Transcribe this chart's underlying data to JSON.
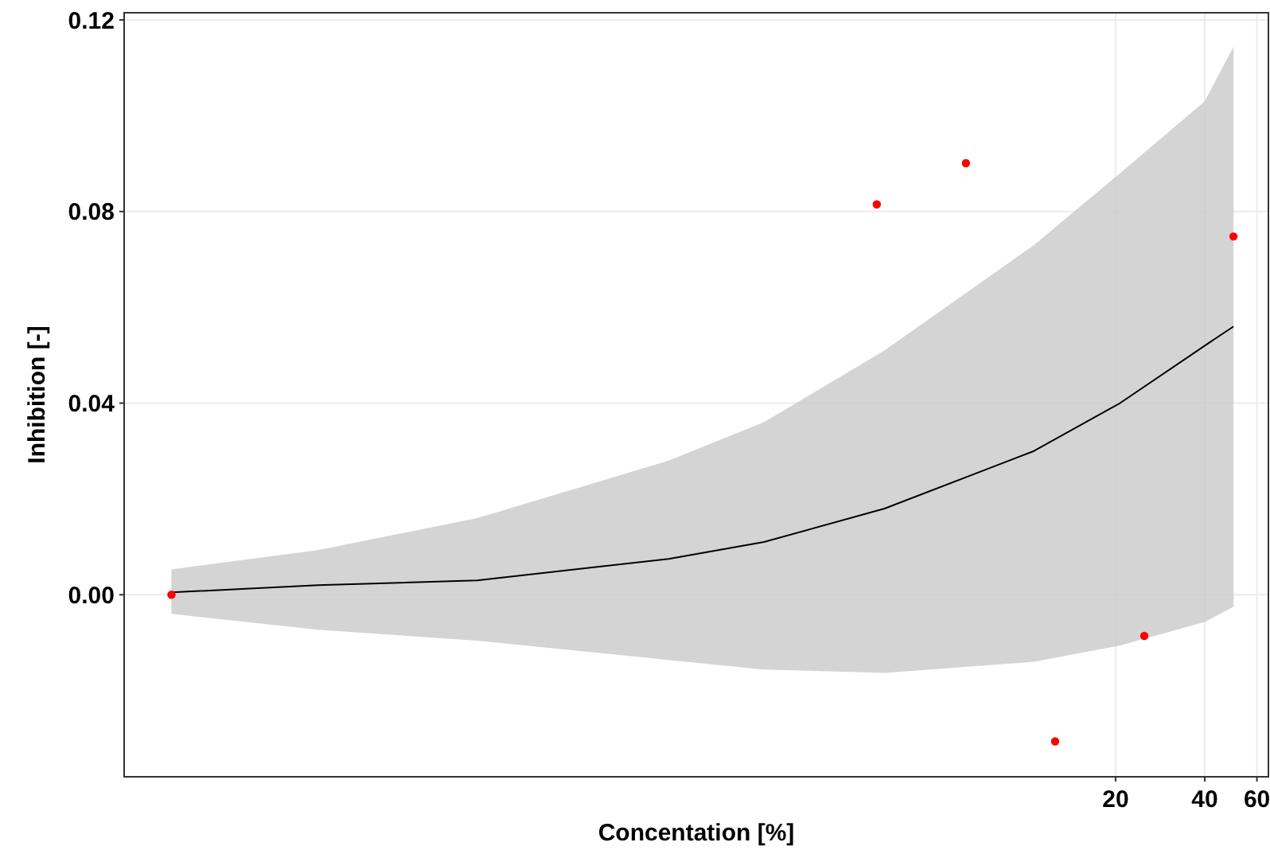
{
  "chart_data": {
    "type": "scatter",
    "xlabel": "Concentation [%]",
    "ylabel": "Inhibition [-]",
    "log": "x",
    "grid": true,
    "marker": "circle",
    "xlim": [
      0.009,
      65.6
    ],
    "xticks": [
      20,
      40,
      60
    ],
    "ylim": [
      -0.038,
      0.1215
    ],
    "yticks": [
      {
        "value": 0,
        "label": "0.00"
      },
      0.04,
      0.08,
      0.12
    ],
    "series": [
      {
        "type": "line",
        "color": "#000000",
        "marker": "none",
        "x": [
          0.013,
          0.0406,
          0.14,
          0.62,
          1.3,
          3.32,
          10.6,
          20.7,
          40,
          50
        ],
        "values": [
          0.0005,
          0.002,
          0.003,
          0.0075,
          0.011,
          0.018,
          0.03,
          0.04,
          0.052,
          0.056
        ],
        "lower": [
          -0.004,
          -0.0073,
          -0.0096,
          -0.0136,
          -0.0156,
          -0.0163,
          -0.014,
          -0.0106,
          -0.0057,
          -0.0025
        ],
        "upper": [
          0.0053,
          0.0093,
          0.016,
          0.028,
          0.036,
          0.051,
          0.073,
          0.088,
          0.103,
          0.1144
        ]
      },
      {
        "color": "#ff0000",
        "x": [
          0.013,
          3.125,
          6.25,
          12.5,
          25,
          50
        ],
        "values": [
          0,
          0.0815,
          0.0901,
          -0.0306,
          -0.0086,
          0.0748
        ]
      }
    ]
  }
}
